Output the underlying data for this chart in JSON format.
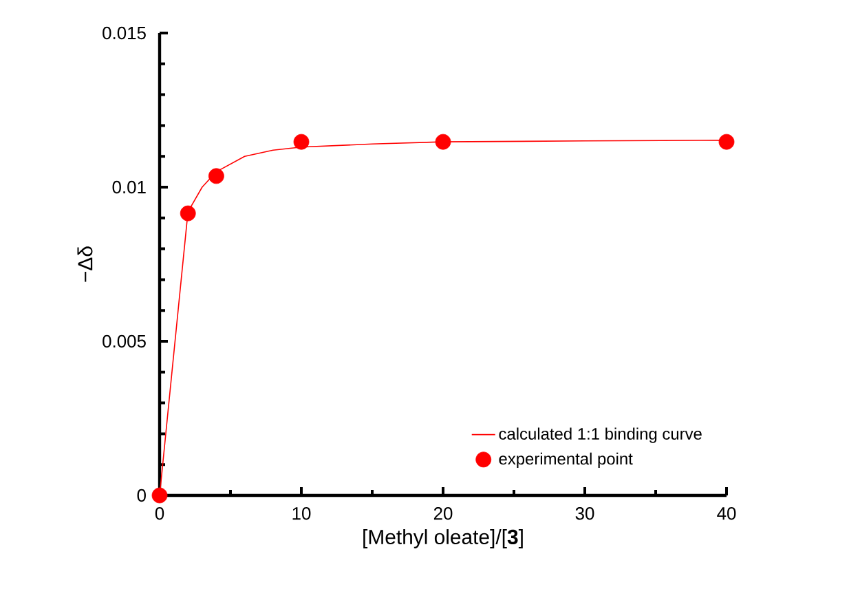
{
  "chart_data": {
    "type": "scatter",
    "xlabel": "[Methyl oleate]/[**3**]",
    "ylabel": "−Δδ",
    "xlim": [
      0,
      40
    ],
    "ylim": [
      0,
      0.015
    ],
    "xticks": [
      0,
      {
        "value": 5,
        "label": null
      },
      10,
      {
        "value": 15,
        "label": null
      },
      20,
      {
        "value": 25,
        "label": null
      },
      30,
      {
        "value": 35,
        "label": null
      },
      40
    ],
    "yticks": [
      0,
      {
        "value": 0.001,
        "label": null
      },
      {
        "value": 0.002,
        "label": null
      },
      {
        "value": 0.003,
        "label": null
      },
      {
        "value": 0.004,
        "label": null
      },
      0.005,
      {
        "value": 0.006,
        "label": null
      },
      {
        "value": 0.007,
        "label": null
      },
      {
        "value": 0.008,
        "label": null
      },
      {
        "value": 0.009,
        "label": null
      },
      0.01,
      {
        "value": 0.011,
        "label": null
      },
      {
        "value": 0.012,
        "label": null
      },
      {
        "value": 0.013,
        "label": null
      },
      {
        "value": 0.014,
        "label": null
      },
      0.015
    ],
    "legend": "bottom right",
    "grid": false,
    "series": [
      {
        "name": "calculated 1:1 binding curve",
        "type": "line",
        "color": "#ff0000",
        "marker": "none",
        "line_style": "solid",
        "x": [
          0,
          2,
          3,
          4,
          6,
          8,
          10,
          15,
          20,
          30,
          40
        ],
        "values": [
          0,
          0.0092,
          0.01,
          0.0105,
          0.011,
          0.0112,
          0.0113,
          0.0114,
          0.01147,
          0.0115,
          0.01152
        ]
      },
      {
        "name": "experimental point",
        "color": "#ff0000",
        "marker": "circle",
        "x": [
          0,
          2,
          4,
          10,
          20,
          40
        ],
        "values": [
          0,
          0.00915,
          0.01036,
          0.01147,
          0.01147,
          0.01147
        ]
      }
    ]
  }
}
